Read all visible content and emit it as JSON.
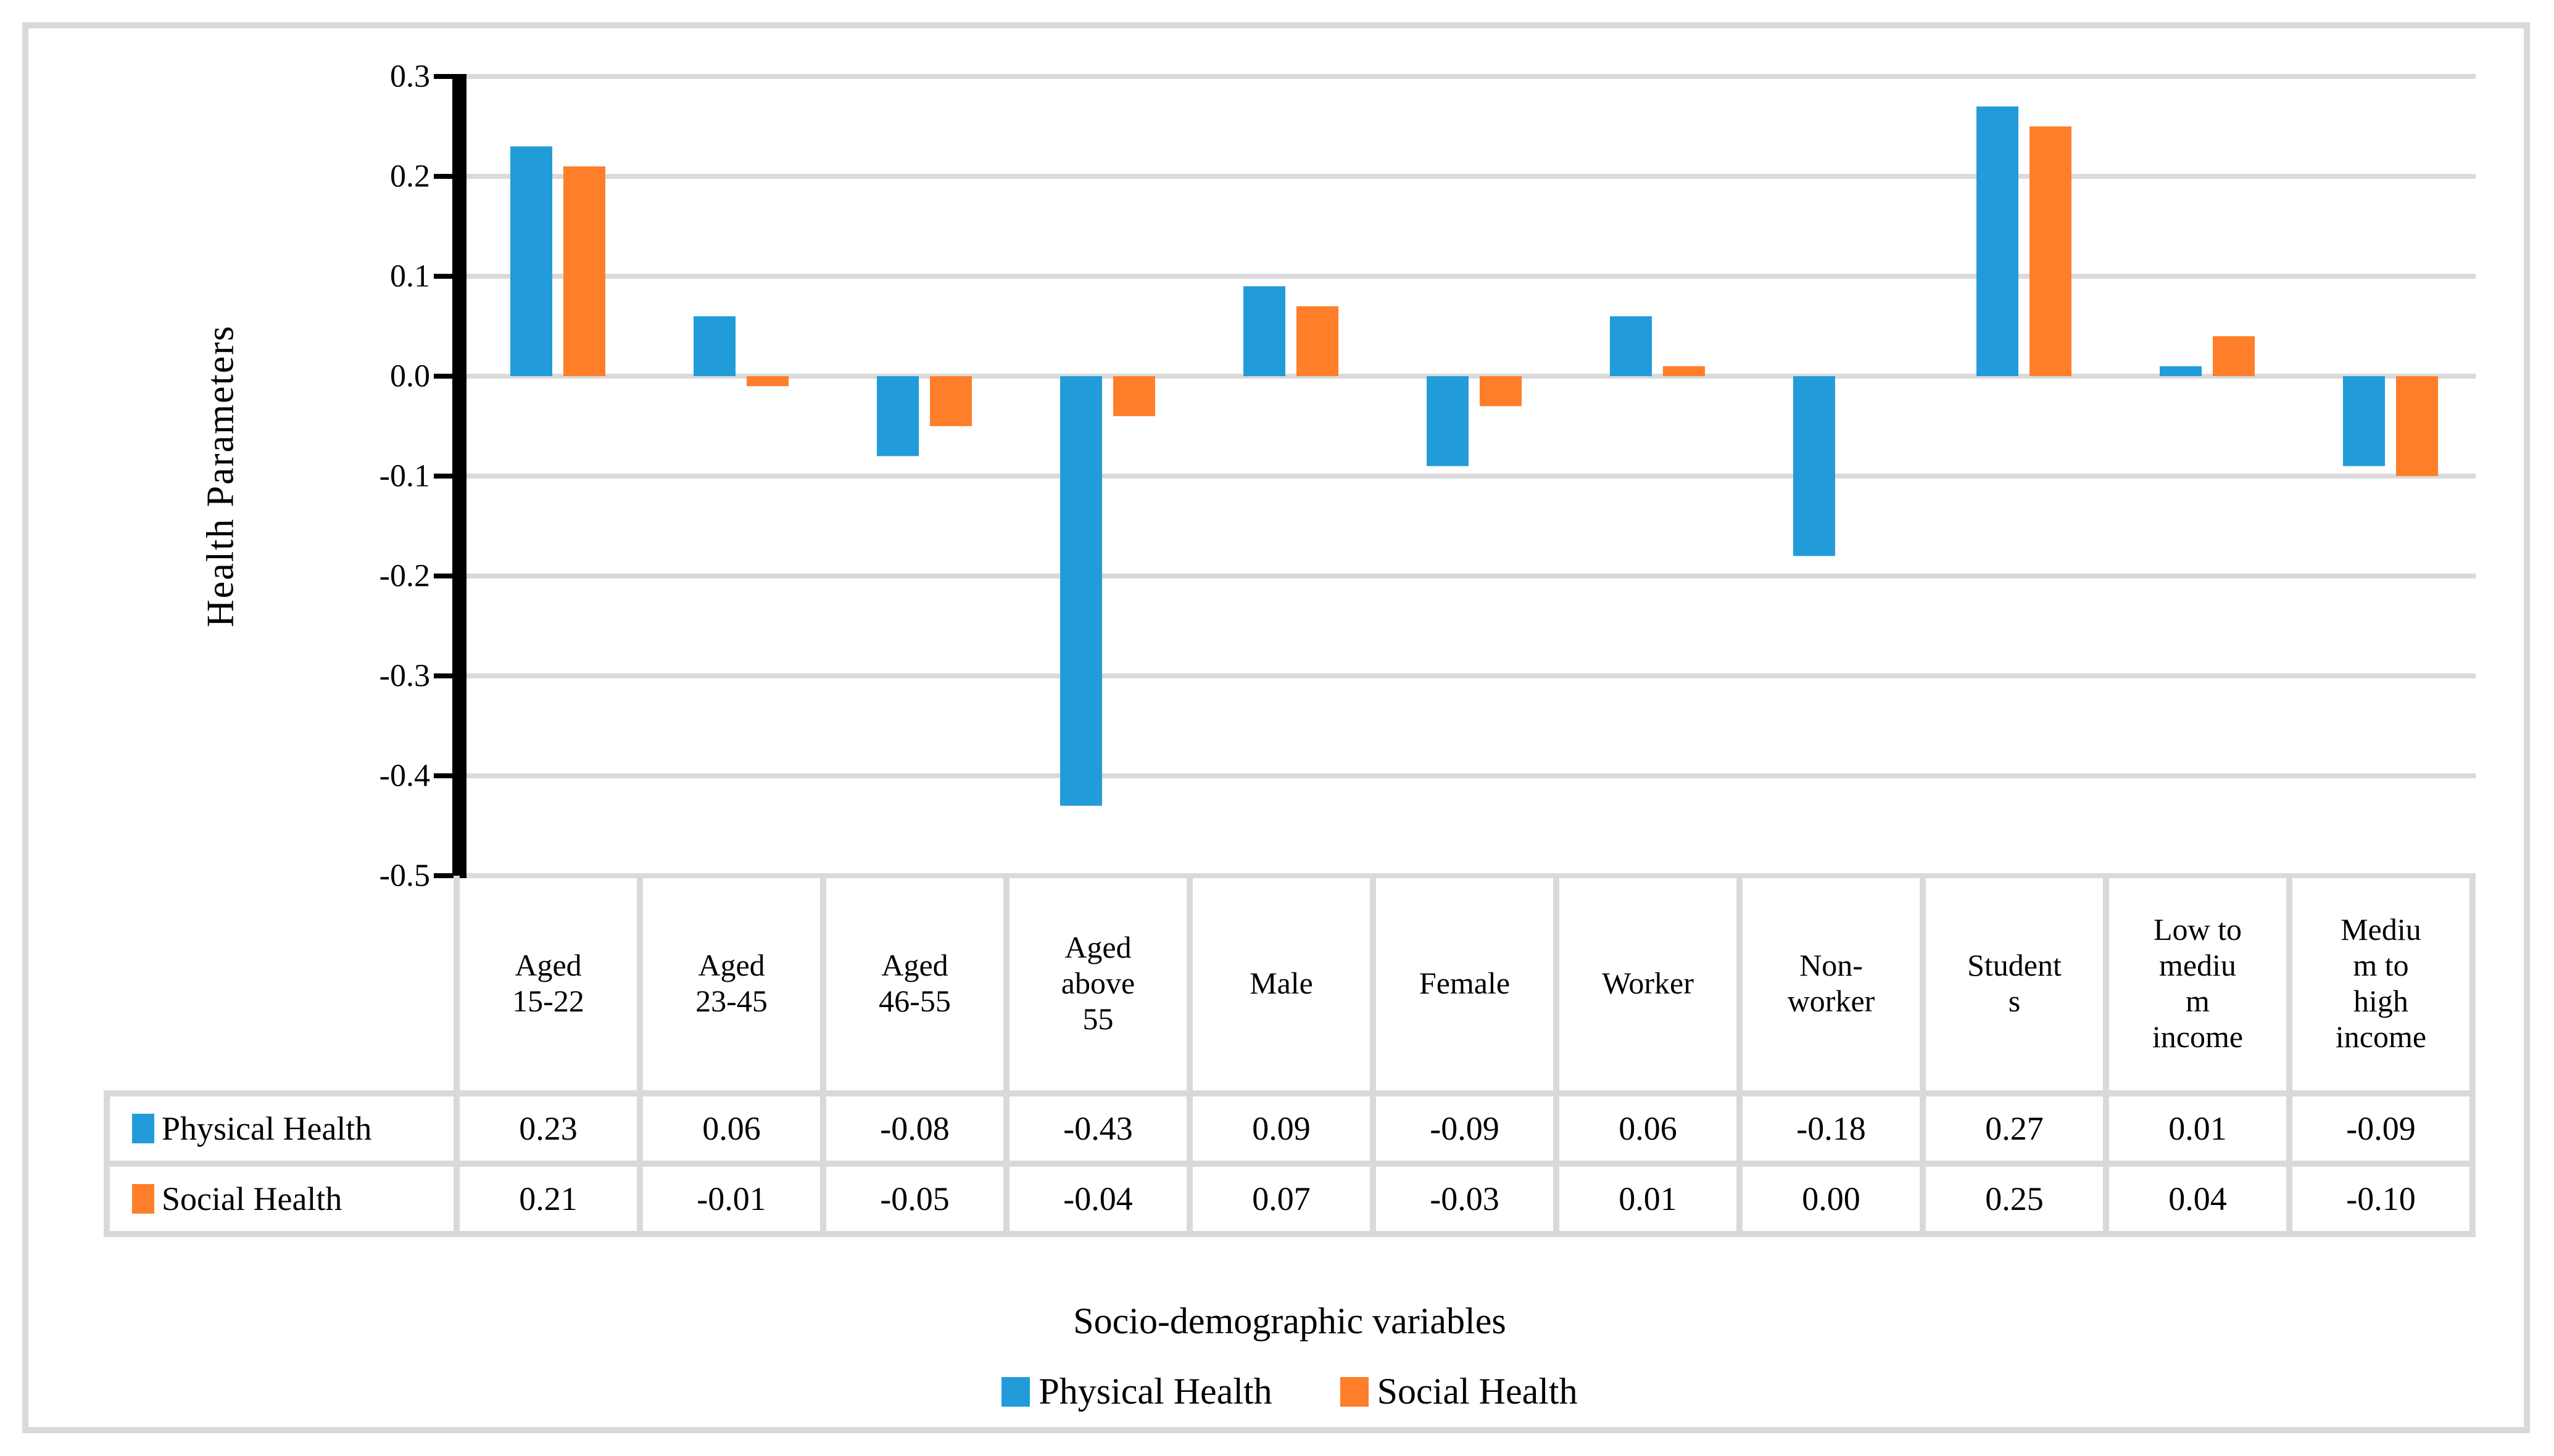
{
  "chart_data": {
    "type": "bar",
    "title": "",
    "ylabel": "Health Parameters",
    "xlabel": "Socio-demographic variables",
    "ylim": [
      -0.5,
      0.3
    ],
    "ytick_step": 0.1,
    "ytick_labels": [
      "0.3",
      "0.2",
      "0.1",
      "0.0",
      "-0.1",
      "-0.2",
      "-0.3",
      "-0.4",
      "-0.5"
    ],
    "grid": true,
    "legend_position": "bottom",
    "categories": [
      "Aged 15-22",
      "Aged 23-45",
      "Aged 46-55",
      "Aged above 55",
      "Male",
      "Female",
      "Worker",
      "Non-worker",
      "Students",
      "Low to medium income",
      "Medium to high income"
    ],
    "series": [
      {
        "name": "Physical Health",
        "color": "#219CD9",
        "values": [
          0.23,
          0.06,
          -0.08,
          -0.43,
          0.09,
          -0.09,
          0.06,
          -0.18,
          0.27,
          0.01,
          -0.09
        ]
      },
      {
        "name": "Social Health",
        "color": "#FF7E29",
        "values": [
          0.21,
          -0.01,
          -0.05,
          -0.04,
          0.07,
          -0.03,
          0.01,
          0.0,
          0.25,
          0.04,
          -0.1
        ]
      }
    ]
  },
  "table": {
    "column_headers_display": [
      "Aged\n15-22",
      "Aged\n23-45",
      "Aged\n46-55",
      "Aged\nabove\n55",
      "Male",
      "Female",
      "Worker",
      "Non-\nworker",
      "Student\ns",
      "Low to\nmediu\nm\nincome",
      "Mediu\nm to\nhigh\nincome"
    ],
    "rows": [
      {
        "label": "Physical Health",
        "swatch_color": "#219CD9",
        "values": [
          "0.23",
          "0.06",
          "-0.08",
          "-0.43",
          "0.09",
          "-0.09",
          "0.06",
          "-0.18",
          "0.27",
          "0.01",
          "-0.09"
        ]
      },
      {
        "label": "Social Health",
        "swatch_color": "#FF7E29",
        "values": [
          "0.21",
          "-0.01",
          "-0.05",
          "-0.04",
          "0.07",
          "-0.03",
          "0.01",
          "0.00",
          "0.25",
          "0.04",
          "-0.10"
        ]
      }
    ]
  },
  "legend": {
    "items": [
      {
        "label": "Physical Health",
        "color": "#219CD9"
      },
      {
        "label": "Social Health",
        "color": "#FF7E29"
      }
    ]
  },
  "colors": {
    "background": "#FFFFFF",
    "figure_border": "#D9D9D9",
    "table_border": "#D9D9D9",
    "gridline": "#DADADA",
    "axis": "#000000"
  }
}
